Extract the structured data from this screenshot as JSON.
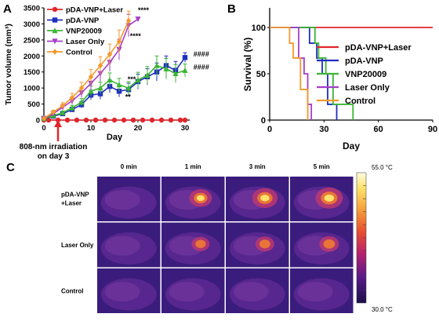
{
  "colors": {
    "red": "#e0262a",
    "blue": "#1f2fbf",
    "green": "#3cb534",
    "purple": "#a53fc9",
    "orange": "#f29a2e"
  },
  "panels": {
    "a_label": "A",
    "b_label": "B",
    "c_label": "C"
  },
  "arrow_icon": "red-up-arrow-icon",
  "chart_data": [
    {
      "panel": "A",
      "type": "line",
      "xlabel": "Day",
      "ylabel": "Tumor volume (mm³)",
      "xlim": [
        0,
        30
      ],
      "ylim": [
        0,
        3500
      ],
      "xticks": [
        "0",
        "10",
        "20",
        "30"
      ],
      "yticks": [
        "0",
        "500",
        "1000",
        "1500",
        "2000",
        "2500",
        "3000",
        "3500"
      ],
      "legend_position": "top-left",
      "series": [
        {
          "name": "pDA-VNP+Laser",
          "color": "#e0262a",
          "marker": "circle",
          "x": [
            0,
            1,
            3,
            5,
            7,
            9,
            11,
            13,
            15,
            17,
            19,
            21,
            23,
            25,
            27,
            29,
            30
          ],
          "y": [
            0,
            0,
            0,
            0,
            0,
            0,
            0,
            0,
            0,
            0,
            0,
            0,
            0,
            0,
            0,
            0,
            0
          ]
        },
        {
          "name": "pDA-VNP",
          "color": "#1f2fbf",
          "marker": "square",
          "x": [
            0,
            2,
            4,
            6,
            8,
            10,
            12,
            14,
            16,
            18,
            20,
            22,
            24,
            26,
            28,
            30
          ],
          "y": [
            50,
            120,
            200,
            330,
            480,
            780,
            820,
            1050,
            900,
            950,
            1200,
            1350,
            1500,
            1700,
            1550,
            1950
          ],
          "err": [
            10,
            30,
            40,
            70,
            100,
            150,
            170,
            200,
            180,
            200,
            230,
            250,
            280,
            300,
            280,
            150
          ]
        },
        {
          "name": "VNP20009",
          "color": "#3cb534",
          "marker": "triangle",
          "x": [
            0,
            2,
            4,
            6,
            8,
            10,
            12,
            14,
            16,
            18,
            20,
            22,
            24,
            26,
            28,
            30
          ],
          "y": [
            50,
            140,
            230,
            380,
            560,
            900,
            1000,
            1250,
            1100,
            1000,
            1250,
            1400,
            1700,
            1600,
            1450,
            1550
          ],
          "err": [
            10,
            30,
            50,
            80,
            110,
            160,
            180,
            220,
            200,
            200,
            240,
            270,
            300,
            320,
            280,
            200
          ]
        },
        {
          "name": "Laser Only",
          "color": "#a53fc9",
          "marker": "triangle-down",
          "x": [
            0,
            2,
            4,
            6,
            8,
            10,
            12,
            14,
            16,
            18,
            20
          ],
          "y": [
            50,
            200,
            400,
            600,
            850,
            1150,
            1450,
            1800,
            2200,
            2950,
            3150
          ],
          "err": [
            10,
            40,
            70,
            110,
            150,
            200,
            250,
            280,
            320,
            350,
            0
          ]
        },
        {
          "name": "Control",
          "color": "#f29a2e",
          "marker": "diamond",
          "x": [
            0,
            2,
            4,
            6,
            8,
            10,
            12,
            14,
            16,
            18
          ],
          "y": [
            50,
            250,
            450,
            700,
            1000,
            1350,
            1700,
            2050,
            2450,
            3100
          ],
          "err": [
            10,
            50,
            90,
            130,
            180,
            230,
            280,
            320,
            360,
            300
          ]
        }
      ],
      "annotations": [
        {
          "text": "****",
          "x": 20,
          "y": 3350
        },
        {
          "text": "****",
          "x": 18.3,
          "y": 2550
        },
        {
          "text": "***",
          "x": 17.8,
          "y": 1200
        },
        {
          "text": "**",
          "x": 17.3,
          "y": 650
        },
        {
          "text": "####",
          "x": 31.8,
          "y": 1980
        },
        {
          "text": "####",
          "x": 31.8,
          "y": 1580
        }
      ],
      "callout": {
        "line1": "808-nm irradiation",
        "line2": "on day 3",
        "day": 3
      }
    },
    {
      "panel": "B",
      "type": "line",
      "step": true,
      "xlabel": "Day",
      "ylabel": "Survival (%)",
      "xlim": [
        0,
        90
      ],
      "ylim": [
        0,
        100
      ],
      "xticks": [
        "0",
        "30",
        "60",
        "90"
      ],
      "yticks": [
        "0",
        "50",
        "100"
      ],
      "legend_position": "right",
      "series": [
        {
          "name": "pDA-VNP+Laser",
          "color": "#e0262a",
          "x": [
            0,
            90
          ],
          "y": [
            100,
            100
          ]
        },
        {
          "name": "pDA-VNP",
          "color": "#1f2fbf",
          "x": [
            0,
            22,
            22,
            26,
            26,
            29,
            29,
            32,
            32,
            37,
            37
          ],
          "y": [
            100,
            100,
            83,
            83,
            67,
            67,
            50,
            50,
            17,
            17,
            0
          ]
        },
        {
          "name": "VNP20009",
          "color": "#3cb534",
          "x": [
            0,
            25,
            25,
            27,
            27,
            31,
            31,
            35,
            35,
            46,
            46
          ],
          "y": [
            100,
            100,
            83,
            83,
            67,
            67,
            50,
            50,
            17,
            17,
            0
          ]
        },
        {
          "name": "Laser Only",
          "color": "#a53fc9",
          "x": [
            0,
            16,
            16,
            19,
            19,
            21,
            21,
            23,
            23
          ],
          "y": [
            100,
            100,
            67,
            67,
            50,
            50,
            17,
            17,
            0
          ]
        },
        {
          "name": "Control",
          "color": "#f29a2e",
          "x": [
            0,
            11,
            11,
            13,
            13,
            17,
            17,
            21,
            21
          ],
          "y": [
            100,
            100,
            83,
            83,
            67,
            67,
            33,
            33,
            0
          ]
        }
      ]
    },
    {
      "panel": "C",
      "type": "heatmap",
      "columns": [
        "0 min",
        "1 min",
        "3 min",
        "5 min"
      ],
      "rows": [
        {
          "label_line1": "pDA-VNP",
          "label_line2": "+Laser",
          "intensity": [
            0.05,
            0.7,
            0.85,
            0.95
          ]
        },
        {
          "label_line1": "Laser Only",
          "label_line2": "",
          "intensity": [
            0.0,
            0.45,
            0.5,
            0.55
          ]
        },
        {
          "label_line1": "Control",
          "label_line2": "",
          "intensity": [
            0.0,
            0.0,
            0.0,
            0.0
          ]
        }
      ],
      "colorbar": {
        "max_label": "55.0 °C",
        "min_label": "30.0 °C"
      }
    }
  ]
}
